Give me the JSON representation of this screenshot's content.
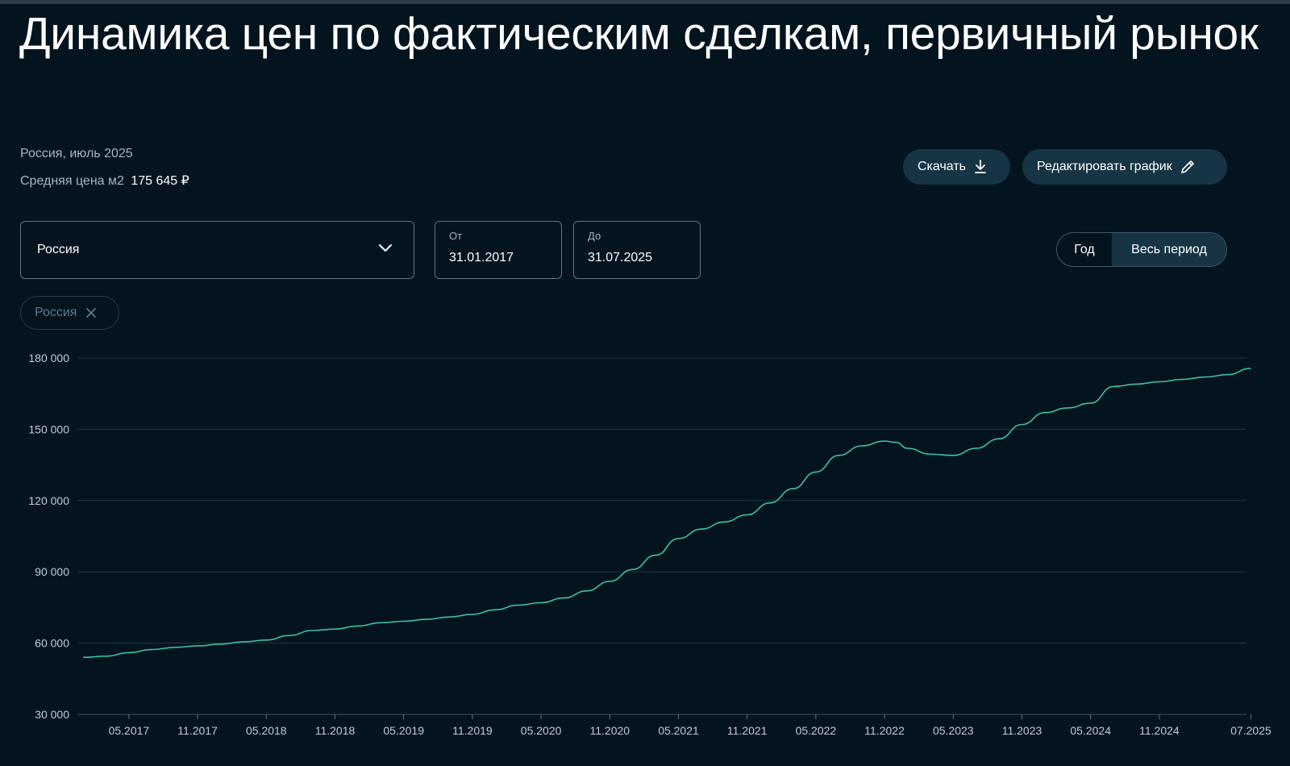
{
  "page": {
    "title": "Динамика цен по фактическим сделкам, первичный рынок",
    "region_period": "Россия, июль 2025",
    "avg_price_label": "Средняя цена м2",
    "avg_price_value": "175 645 ₽"
  },
  "toolbar": {
    "download_label": "Скачать",
    "edit_label": "Редактировать график"
  },
  "filters": {
    "region_select": "Россия",
    "from_label": "От",
    "from_value": "31.01.2017",
    "to_label": "До",
    "to_value": "31.07.2025",
    "period_options": [
      "Год",
      "Весь период"
    ],
    "period_selected": "Весь период",
    "chips": [
      "Россия"
    ]
  },
  "colors": {
    "background": "#03141f",
    "line": "#3fbfa3",
    "button_bg": "#163444"
  },
  "chart_data": {
    "type": "line",
    "y_ticks": [
      "30 000",
      "60 000",
      "90 000",
      "120 000",
      "150 000",
      "180 000"
    ],
    "x_ticks": [
      "05.2017",
      "11.2017",
      "05.2018",
      "11.2018",
      "05.2019",
      "11.2019",
      "05.2020",
      "11.2020",
      "05.2021",
      "11.2021",
      "05.2022",
      "11.2022",
      "05.2023",
      "11.2023",
      "05.2024",
      "11.2024",
      "07.2025"
    ],
    "ylim": [
      30000,
      180000
    ],
    "grid": true,
    "series": [
      {
        "x": [
          "01.2017",
          "03.2017",
          "05.2017",
          "07.2017",
          "09.2017",
          "11.2017",
          "01.2018",
          "03.2018",
          "05.2018",
          "07.2018",
          "09.2018",
          "11.2018",
          "01.2019",
          "03.2019",
          "05.2019",
          "07.2019",
          "09.2019",
          "11.2019",
          "01.2020",
          "03.2020",
          "05.2020",
          "07.2020",
          "09.2020",
          "11.2020",
          "01.2021",
          "03.2021",
          "05.2021",
          "07.2021",
          "09.2021",
          "11.2021",
          "01.2022",
          "03.2022",
          "05.2022",
          "07.2022",
          "09.2022",
          "11.2022",
          "12.2022",
          "01.2023",
          "03.2023",
          "05.2023",
          "07.2023",
          "09.2023",
          "11.2023",
          "01.2024",
          "03.2024",
          "05.2024",
          "07.2024",
          "09.2024",
          "11.2024",
          "01.2025",
          "03.2025",
          "05.2025",
          "07.2025"
        ],
        "values": [
          54000,
          54500,
          56000,
          57300,
          58200,
          58800,
          59600,
          60500,
          61300,
          63200,
          65300,
          65900,
          67200,
          68600,
          69200,
          70000,
          71000,
          72100,
          74000,
          76000,
          77000,
          79000,
          82000,
          86000,
          91000,
          97000,
          104000,
          108000,
          111000,
          114000,
          119000,
          125000,
          132000,
          139000,
          143000,
          145000,
          144500,
          142000,
          139500,
          139000,
          142000,
          146000,
          152000,
          157000,
          159000,
          161000,
          168000,
          169000,
          170000,
          171000,
          172000,
          173000,
          175645
        ]
      }
    ]
  }
}
